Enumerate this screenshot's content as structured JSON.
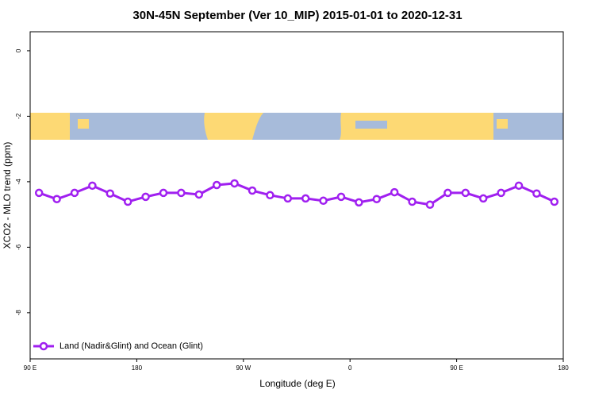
{
  "chart_data": {
    "type": "line",
    "title": "30N-45N September (Ver 10_MIP)   2015-01-01 to 2020-12-31",
    "xlabel": "Longitude (deg E)",
    "ylabel": "XCO2 - MLO trend (ppm)",
    "x": [
      97.5,
      112.5,
      127.5,
      142.5,
      157.5,
      172.5,
      187.5,
      202.5,
      217.5,
      232.5,
      247.5,
      262.5,
      277.5,
      292.5,
      307.5,
      322.5,
      337.5,
      352.5,
      367.5,
      382.5,
      397.5,
      412.5,
      427.5,
      442.5,
      457.5,
      472.5,
      487.5,
      502.5,
      517.5,
      532.5
    ],
    "series": [
      {
        "name": "Land (Nadir&Glint) and Ocean (Glint)",
        "color": "#a020f0",
        "values": [
          -4.34,
          -4.53,
          -4.34,
          -4.12,
          -4.36,
          -4.61,
          -4.46,
          -4.34,
          -4.34,
          -4.39,
          -4.1,
          -4.05,
          -4.27,
          -4.41,
          -4.51,
          -4.51,
          -4.58,
          -4.46,
          -4.63,
          -4.53,
          -4.32,
          -4.61,
          -4.7,
          -4.34,
          -4.34,
          -4.51,
          -4.34,
          -4.12,
          -4.36,
          -4.61
        ]
      }
    ],
    "xlim": [
      90,
      540
    ],
    "xticks": [
      {
        "value": 90,
        "label": "90 E"
      },
      {
        "value": 180,
        "label": "180"
      },
      {
        "value": 270,
        "label": "90 W"
      },
      {
        "value": 360,
        "label": "0"
      },
      {
        "value": 450,
        "label": "90 E"
      },
      {
        "value": 540,
        "label": "180"
      }
    ],
    "ylim": [
      -9.41,
      0.58
    ],
    "yticks": [
      0,
      -2,
      -4,
      -6,
      -8
    ],
    "legend": "bottomleft"
  }
}
